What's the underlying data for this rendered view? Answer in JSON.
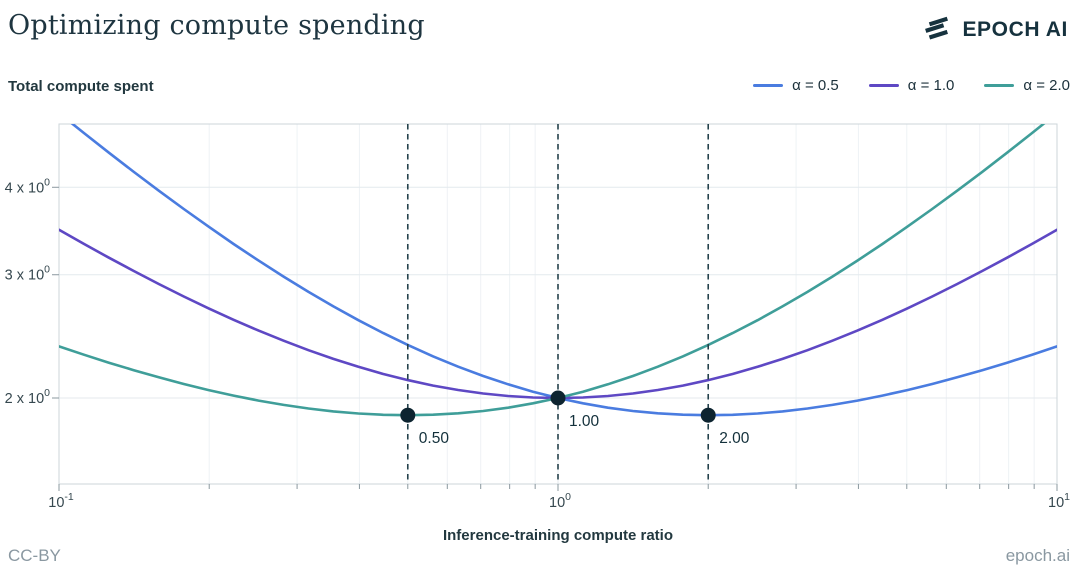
{
  "header": {
    "title": "Optimizing compute spending",
    "logo_text": "EPOCH AI"
  },
  "footer": {
    "license": "CC-BY",
    "site": "epoch.ai"
  },
  "colors": {
    "blue": "#4a7ce0",
    "purple": "#5e48c4",
    "teal": "#3f9e99",
    "marker_dot": "#0d2430",
    "dashed_line": "#24414b",
    "grid_major": "#e4eaee",
    "grid_minor": "#eef2f5",
    "plot_border": "#ccd5da",
    "tick": "#8b989f",
    "tick_label": "#36484f",
    "annotation": "#13303b"
  },
  "chart_data": {
    "type": "line",
    "title": "Optimizing compute spending",
    "ylabel": "Total compute spent",
    "xlabel": "Inference-training compute ratio",
    "x_scale": "log",
    "y_scale": "log",
    "xlim": [
      0.1,
      10
    ],
    "ylim": [
      1.51,
      4.93
    ],
    "legend_position": "top-right",
    "grid": "on",
    "x_ticks": [
      {
        "base": "10",
        "exp": "-1",
        "value": 0.1
      },
      {
        "base": "10",
        "exp": "0",
        "value": 1
      },
      {
        "base": "10",
        "exp": "1",
        "value": 10
      }
    ],
    "y_ticks": [
      {
        "base": "2 x 10",
        "exp": "0",
        "value": 2
      },
      {
        "base": "3 x 10",
        "exp": "0",
        "value": 3
      },
      {
        "base": "4 x 10",
        "exp": "0",
        "value": 4
      }
    ],
    "x_minor_gridlines": [
      0.2,
      0.3,
      0.4,
      0.5,
      0.6,
      0.7,
      0.8,
      0.9,
      2,
      3,
      4,
      5,
      6,
      7,
      8,
      9
    ],
    "x": [
      0.1,
      0.1122,
      0.12589,
      0.14125,
      0.15849,
      0.17783,
      0.19953,
      0.22387,
      0.25119,
      0.28184,
      0.31623,
      0.35481,
      0.39811,
      0.44668,
      0.50119,
      0.56234,
      0.63096,
      0.70795,
      0.79433,
      0.89125,
      1,
      1.12202,
      1.25893,
      1.41254,
      1.58489,
      1.77828,
      1.99526,
      2.23872,
      2.51189,
      2.81838,
      3.16228,
      3.54813,
      3.98107,
      4.46684,
      5.01187,
      5.62341,
      6.30957,
      7.07946,
      7.94328,
      8.91251,
      10
    ],
    "series": [
      {
        "name": "α = 0.5",
        "color": "#4a7ce0",
        "values": [
          5.1057,
          4.7812,
          4.4822,
          4.2078,
          3.9557,
          3.7246,
          3.513,
          3.3195,
          3.1429,
          2.9819,
          2.8357,
          2.7032,
          2.5834,
          2.4757,
          2.3792,
          2.2932,
          2.217,
          2.1502,
          2.092,
          2.0421,
          2,
          1.9652,
          1.9375,
          1.9163,
          1.9016,
          1.8928,
          1.8899,
          1.8925,
          1.9005,
          1.9137,
          1.932,
          1.9551,
          1.983,
          2.0156,
          2.0528,
          2.0944,
          2.1407,
          2.1914,
          2.2464,
          2.306,
          2.3699
        ]
      },
      {
        "name": "α = 1.0",
        "color": "#5e48c4",
        "values": [
          3.4785,
          3.3203,
          3.1732,
          3.0366,
          2.91,
          2.7931,
          2.6854,
          2.5866,
          2.4965,
          2.4145,
          2.3406,
          2.2745,
          2.2159,
          2.1646,
          2.1205,
          2.0834,
          2.0532,
          2.0299,
          2.0133,
          2.0033,
          2,
          2.0033,
          2.0133,
          2.0299,
          2.0532,
          2.0834,
          2.1205,
          2.1646,
          2.2159,
          2.2745,
          2.3406,
          2.4145,
          2.4965,
          2.5866,
          2.6854,
          2.7931,
          2.91,
          3.0366,
          3.1732,
          3.3203,
          3.4785
        ]
      },
      {
        "name": "α = 2.0",
        "color": "#3f9e99",
        "values": [
          2.3699,
          2.306,
          2.2464,
          2.1914,
          2.1407,
          2.0944,
          2.0528,
          2.0156,
          1.983,
          1.9551,
          1.932,
          1.9137,
          1.9005,
          1.8925,
          1.8899,
          1.8928,
          1.9016,
          1.9163,
          1.9375,
          1.9652,
          2,
          2.0421,
          2.092,
          2.1502,
          2.217,
          2.2932,
          2.3792,
          2.4757,
          2.5834,
          2.7032,
          2.8357,
          2.9819,
          3.1429,
          3.3195,
          3.513,
          3.7246,
          3.9557,
          4.2078,
          4.4822,
          4.7812,
          5.1057
        ]
      }
    ],
    "markers": [
      {
        "x": 0.5,
        "y": 1.8899,
        "label": "0.50"
      },
      {
        "x": 1,
        "y": 2.0,
        "label": "1.00"
      },
      {
        "x": 2,
        "y": 1.8899,
        "label": "2.00"
      }
    ]
  }
}
